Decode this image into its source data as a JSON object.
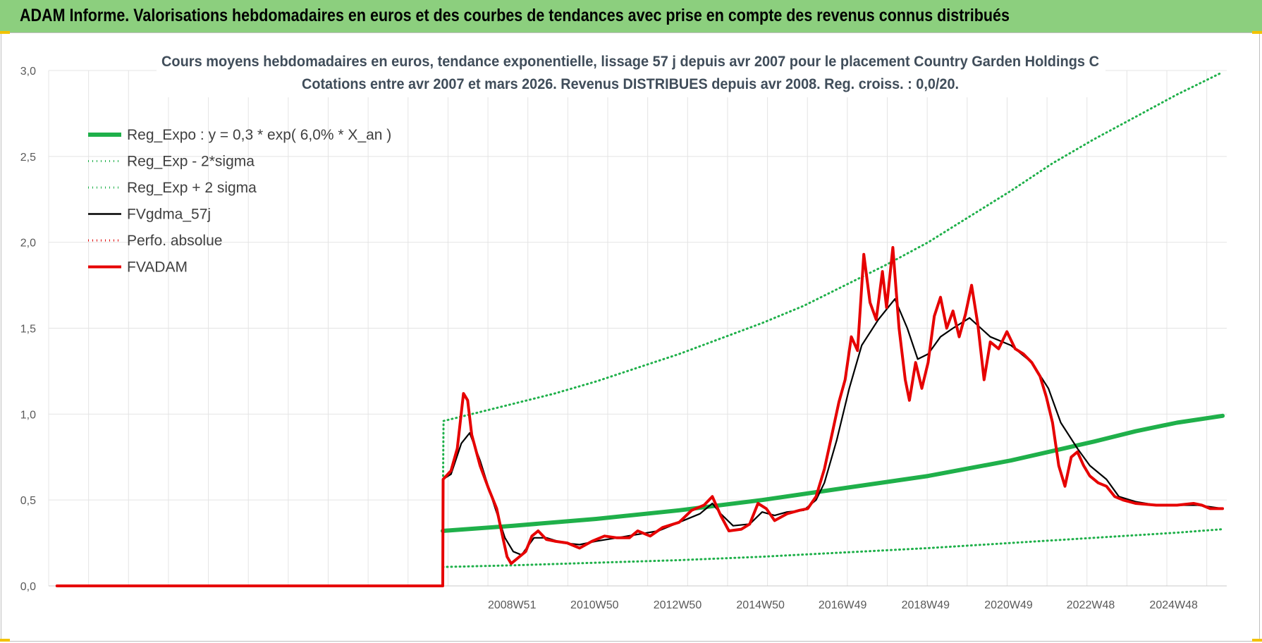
{
  "header": {
    "title": "ADAM Informe. Valorisations hebdomadaires en euros et des courbes de tendances avec prise en compte des revenus connus distribués"
  },
  "chart_data": {
    "type": "line",
    "title": "Cours moyens hebdomadaires en euros, tendance exponentielle, lissage 57 j depuis avr 2007 pour le placement Country Garden Holdings C",
    "subtitle": "Cotations entre avr 2007 et mars 2026.  Revenus DISTRIBUES depuis avr 2008. Reg. croiss. : 0,0/20.",
    "x_unit": "year (decimal)",
    "xlim": [
      1997.8,
      2026.2
    ],
    "ylim": [
      0,
      3.0
    ],
    "y_ticks": [
      "0,0",
      "0,5",
      "1,0",
      "1,5",
      "2,0",
      "2,5",
      "3,0"
    ],
    "x_tick_labels": [
      {
        "label": "2008W51",
        "x": 2008.97
      },
      {
        "label": "2010W50",
        "x": 2010.96
      },
      {
        "label": "2012W50",
        "x": 2012.96
      },
      {
        "label": "2014W50",
        "x": 2014.96
      },
      {
        "label": "2016W49",
        "x": 2016.94
      },
      {
        "label": "2018W49",
        "x": 2018.94
      },
      {
        "label": "2020W49",
        "x": 2020.94
      },
      {
        "label": "2022W48",
        "x": 2022.92
      },
      {
        "label": "2024W48",
        "x": 2024.92
      }
    ],
    "grid": true,
    "legend_position": "top-left",
    "series": [
      {
        "name": "Reg_Expo : y = 0,3 * exp( 6,0% *  X_an )",
        "color": "#1fb04a",
        "style": "solid-thick",
        "points": [
          [
            2007.3,
            0.32
          ],
          [
            2009,
            0.35
          ],
          [
            2011,
            0.39
          ],
          [
            2013,
            0.44
          ],
          [
            2015,
            0.5
          ],
          [
            2017,
            0.57
          ],
          [
            2019,
            0.64
          ],
          [
            2021,
            0.73
          ],
          [
            2023,
            0.84
          ],
          [
            2024,
            0.9
          ],
          [
            2025,
            0.95
          ],
          [
            2026.1,
            0.99
          ]
        ]
      },
      {
        "name": "Reg_Exp - 2*sigma",
        "color": "#1fb04a",
        "style": "dotted",
        "points": [
          [
            2007.3,
            0.11
          ],
          [
            2009,
            0.12
          ],
          [
            2011,
            0.135
          ],
          [
            2013,
            0.15
          ],
          [
            2015,
            0.17
          ],
          [
            2017,
            0.195
          ],
          [
            2019,
            0.22
          ],
          [
            2021,
            0.25
          ],
          [
            2023,
            0.28
          ],
          [
            2025,
            0.31
          ],
          [
            2026.1,
            0.33
          ]
        ]
      },
      {
        "name": "Reg_Exp + 2 sigma",
        "color": "#1fb04a",
        "style": "dotted",
        "points": [
          [
            2007.3,
            0.0
          ],
          [
            2007.31,
            0.65
          ],
          [
            2007.32,
            0.96
          ],
          [
            2008,
            1.0
          ],
          [
            2009,
            1.06
          ],
          [
            2010,
            1.12
          ],
          [
            2011,
            1.19
          ],
          [
            2012,
            1.27
          ],
          [
            2013,
            1.35
          ],
          [
            2014,
            1.44
          ],
          [
            2015,
            1.53
          ],
          [
            2016,
            1.63
          ],
          [
            2017,
            1.75
          ],
          [
            2018,
            1.87
          ],
          [
            2019,
            2.0
          ],
          [
            2020,
            2.15
          ],
          [
            2021,
            2.3
          ],
          [
            2022,
            2.46
          ],
          [
            2023,
            2.6
          ],
          [
            2024,
            2.73
          ],
          [
            2025,
            2.86
          ],
          [
            2026.1,
            2.99
          ]
        ]
      },
      {
        "name": "FVgdma_57j",
        "color": "#000000",
        "style": "solid",
        "points": [
          [
            2007.3,
            0.62
          ],
          [
            2007.5,
            0.65
          ],
          [
            2007.75,
            0.83
          ],
          [
            2007.95,
            0.89
          ],
          [
            2008.2,
            0.73
          ],
          [
            2008.5,
            0.5
          ],
          [
            2008.8,
            0.28
          ],
          [
            2009.0,
            0.2
          ],
          [
            2009.2,
            0.18
          ],
          [
            2009.5,
            0.28
          ],
          [
            2009.8,
            0.28
          ],
          [
            2010.2,
            0.25
          ],
          [
            2010.6,
            0.24
          ],
          [
            2011.0,
            0.26
          ],
          [
            2011.5,
            0.28
          ],
          [
            2012.0,
            0.3
          ],
          [
            2012.5,
            0.32
          ],
          [
            2013.0,
            0.37
          ],
          [
            2013.5,
            0.42
          ],
          [
            2013.8,
            0.48
          ],
          [
            2014.0,
            0.42
          ],
          [
            2014.3,
            0.35
          ],
          [
            2014.7,
            0.36
          ],
          [
            2015.0,
            0.43
          ],
          [
            2015.3,
            0.41
          ],
          [
            2015.6,
            0.43
          ],
          [
            2016.0,
            0.44
          ],
          [
            2016.3,
            0.5
          ],
          [
            2016.5,
            0.6
          ],
          [
            2016.8,
            0.85
          ],
          [
            2017.1,
            1.15
          ],
          [
            2017.4,
            1.4
          ],
          [
            2017.8,
            1.55
          ],
          [
            2018.2,
            1.67
          ],
          [
            2018.5,
            1.5
          ],
          [
            2018.75,
            1.32
          ],
          [
            2019.0,
            1.35
          ],
          [
            2019.3,
            1.45
          ],
          [
            2019.6,
            1.5
          ],
          [
            2020.0,
            1.56
          ],
          [
            2020.5,
            1.45
          ],
          [
            2021.0,
            1.4
          ],
          [
            2021.5,
            1.3
          ],
          [
            2021.9,
            1.15
          ],
          [
            2022.2,
            0.95
          ],
          [
            2022.6,
            0.8
          ],
          [
            2022.9,
            0.7
          ],
          [
            2023.3,
            0.62
          ],
          [
            2023.6,
            0.52
          ],
          [
            2024.0,
            0.49
          ],
          [
            2024.5,
            0.47
          ],
          [
            2025.0,
            0.47
          ],
          [
            2025.5,
            0.47
          ],
          [
            2026.1,
            0.45
          ]
        ]
      },
      {
        "name": "Perfo. absolue",
        "color": "#e00000",
        "style": "dotted",
        "points": []
      },
      {
        "name": "FVADAM",
        "color": "#e60000",
        "style": "solid-thick",
        "points": [
          [
            1998.0,
            0.0
          ],
          [
            2007.3,
            0.0
          ],
          [
            2007.31,
            0.62
          ],
          [
            2007.5,
            0.67
          ],
          [
            2007.65,
            0.8
          ],
          [
            2007.8,
            1.12
          ],
          [
            2007.9,
            1.08
          ],
          [
            2008.0,
            0.88
          ],
          [
            2008.2,
            0.7
          ],
          [
            2008.4,
            0.57
          ],
          [
            2008.6,
            0.45
          ],
          [
            2008.75,
            0.28
          ],
          [
            2008.85,
            0.17
          ],
          [
            2008.95,
            0.13
          ],
          [
            2009.1,
            0.16
          ],
          [
            2009.3,
            0.2
          ],
          [
            2009.45,
            0.29
          ],
          [
            2009.6,
            0.32
          ],
          [
            2009.8,
            0.27
          ],
          [
            2010.0,
            0.26
          ],
          [
            2010.3,
            0.25
          ],
          [
            2010.6,
            0.22
          ],
          [
            2010.9,
            0.26
          ],
          [
            2011.2,
            0.29
          ],
          [
            2011.5,
            0.28
          ],
          [
            2011.8,
            0.28
          ],
          [
            2012.0,
            0.32
          ],
          [
            2012.3,
            0.29
          ],
          [
            2012.6,
            0.34
          ],
          [
            2013.0,
            0.37
          ],
          [
            2013.3,
            0.44
          ],
          [
            2013.6,
            0.47
          ],
          [
            2013.8,
            0.52
          ],
          [
            2014.0,
            0.41
          ],
          [
            2014.2,
            0.32
          ],
          [
            2014.5,
            0.33
          ],
          [
            2014.7,
            0.36
          ],
          [
            2014.9,
            0.48
          ],
          [
            2015.1,
            0.45
          ],
          [
            2015.3,
            0.38
          ],
          [
            2015.6,
            0.42
          ],
          [
            2015.9,
            0.44
          ],
          [
            2016.1,
            0.45
          ],
          [
            2016.3,
            0.52
          ],
          [
            2016.5,
            0.68
          ],
          [
            2016.7,
            0.9
          ],
          [
            2016.85,
            1.07
          ],
          [
            2017.0,
            1.2
          ],
          [
            2017.15,
            1.45
          ],
          [
            2017.3,
            1.37
          ],
          [
            2017.45,
            1.93
          ],
          [
            2017.6,
            1.65
          ],
          [
            2017.75,
            1.55
          ],
          [
            2017.9,
            1.83
          ],
          [
            2018.0,
            1.62
          ],
          [
            2018.15,
            1.97
          ],
          [
            2018.3,
            1.5
          ],
          [
            2018.45,
            1.2
          ],
          [
            2018.55,
            1.08
          ],
          [
            2018.7,
            1.3
          ],
          [
            2018.85,
            1.15
          ],
          [
            2019.0,
            1.3
          ],
          [
            2019.15,
            1.57
          ],
          [
            2019.3,
            1.68
          ],
          [
            2019.45,
            1.5
          ],
          [
            2019.6,
            1.6
          ],
          [
            2019.75,
            1.45
          ],
          [
            2019.9,
            1.58
          ],
          [
            2020.05,
            1.75
          ],
          [
            2020.2,
            1.52
          ],
          [
            2020.35,
            1.2
          ],
          [
            2020.5,
            1.42
          ],
          [
            2020.7,
            1.38
          ],
          [
            2020.9,
            1.48
          ],
          [
            2021.1,
            1.38
          ],
          [
            2021.3,
            1.35
          ],
          [
            2021.5,
            1.3
          ],
          [
            2021.7,
            1.22
          ],
          [
            2021.85,
            1.1
          ],
          [
            2022.0,
            0.95
          ],
          [
            2022.15,
            0.7
          ],
          [
            2022.3,
            0.58
          ],
          [
            2022.45,
            0.75
          ],
          [
            2022.6,
            0.78
          ],
          [
            2022.75,
            0.7
          ],
          [
            2022.9,
            0.64
          ],
          [
            2023.1,
            0.6
          ],
          [
            2023.3,
            0.58
          ],
          [
            2023.5,
            0.52
          ],
          [
            2023.7,
            0.5
          ],
          [
            2024.0,
            0.48
          ],
          [
            2024.5,
            0.47
          ],
          [
            2025.0,
            0.47
          ],
          [
            2025.4,
            0.48
          ],
          [
            2025.6,
            0.47
          ],
          [
            2025.8,
            0.45
          ],
          [
            2026.1,
            0.45
          ]
        ]
      }
    ]
  }
}
